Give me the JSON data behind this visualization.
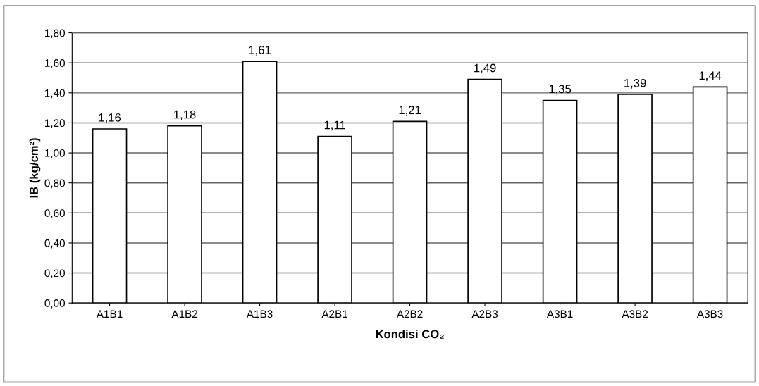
{
  "chart_data": {
    "type": "bar",
    "xlabel": "Kondisi CO₂",
    "ylabel": "IB (kg/cm²)",
    "categories": [
      "A1B1",
      "A1B2",
      "A1B3",
      "A2B1",
      "A2B2",
      "A2B3",
      "A3B1",
      "A3B2",
      "A3B3"
    ],
    "values": [
      1.16,
      1.18,
      1.61,
      1.11,
      1.21,
      1.49,
      1.35,
      1.39,
      1.44
    ],
    "value_labels": [
      "1,16",
      "1,18",
      "1,61",
      "1,11",
      "1,21",
      "1,49",
      "1,35",
      "1,39",
      "1,44"
    ],
    "color": "#ffffff",
    "ylim": [
      0,
      1.8
    ],
    "yticks": [
      {
        "value": 0,
        "label": "0,00"
      },
      {
        "value": 0.2,
        "label": "0,20"
      },
      {
        "value": 0.4,
        "label": "0,40"
      },
      {
        "value": 0.6,
        "label": "0,60"
      },
      {
        "value": 0.8,
        "label": "0,80"
      },
      {
        "value": 1.0,
        "label": "1,00"
      },
      {
        "value": 1.2,
        "label": "1,20"
      },
      {
        "value": 1.4,
        "label": "1,40"
      },
      {
        "value": 1.6,
        "label": "1,60"
      },
      {
        "value": 1.8,
        "label": "1,80"
      }
    ],
    "grid": "y",
    "legend": false
  }
}
